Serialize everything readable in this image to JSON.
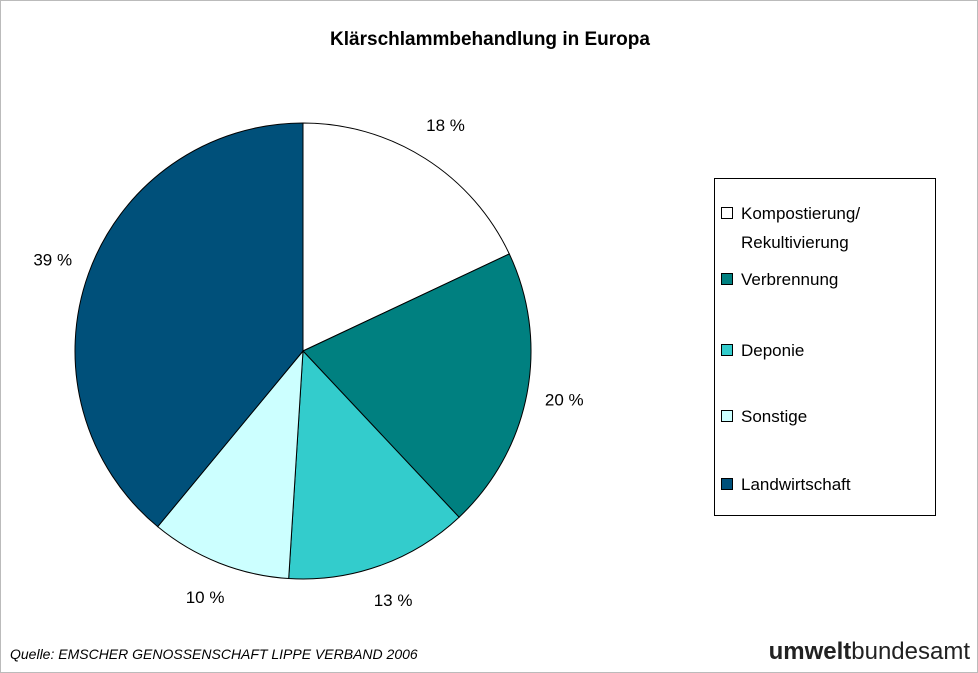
{
  "chart_data": {
    "type": "pie",
    "title": "Klärschlammbehandlung in Europa",
    "categories": [
      "Kompostierung/\nRekultivierung",
      "Verbrennung",
      "Deponie",
      "Sonstige",
      "Landwirtschaft"
    ],
    "values": [
      18,
      20,
      13,
      10,
      39
    ],
    "value_labels": [
      "18 %",
      "20 %",
      "13 %",
      "10 %",
      "39 %"
    ],
    "colors": [
      "#ffffff",
      "#008080",
      "#33cccc",
      "#ccffff",
      "#00507a"
    ],
    "legend": "right",
    "source": "Quelle: EMSCHER GENOSSENSCHAFT LIPPE VERBAND 2006",
    "logo": {
      "bold": "umwelt",
      "rest": "bundesamt"
    }
  }
}
